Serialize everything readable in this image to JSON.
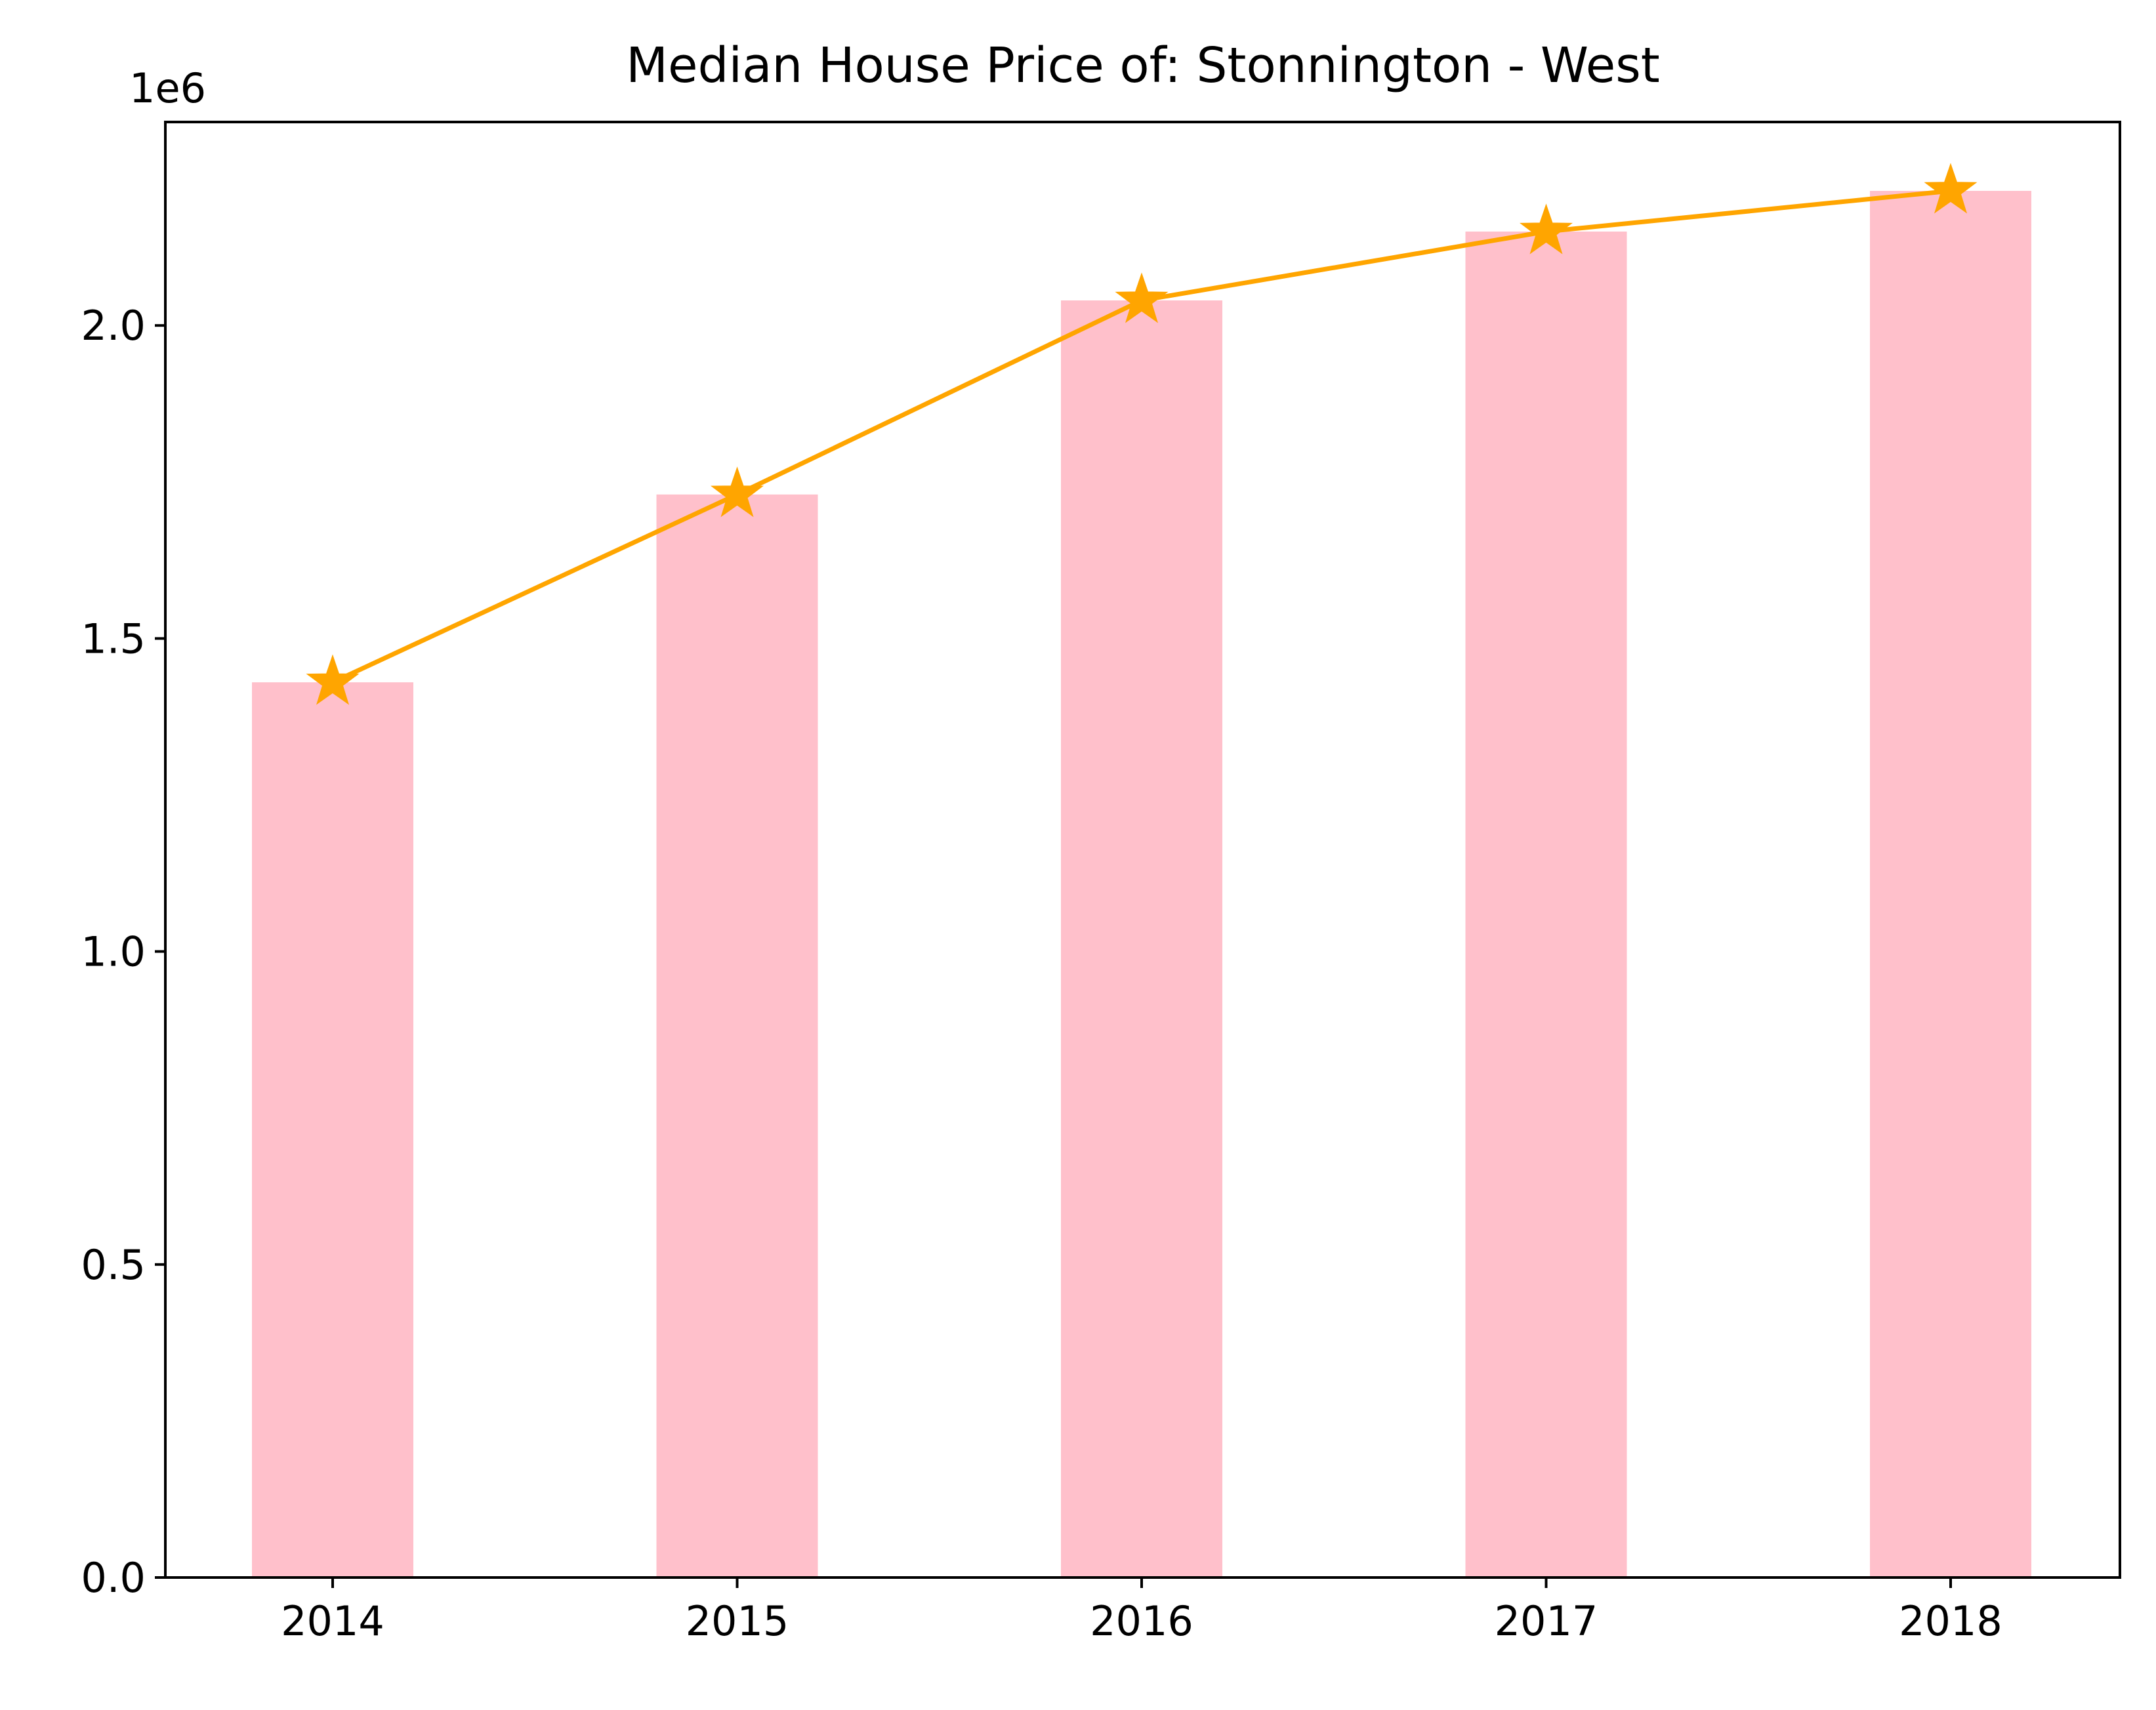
{
  "chart_data": {
    "type": "bar",
    "title": "Median House Price of: Stonnington - West",
    "xlabel": "",
    "ylabel": "",
    "categories": [
      "2014",
      "2015",
      "2016",
      "2017",
      "2018"
    ],
    "values": [
      1430000,
      1730000,
      2040000,
      2150000,
      2215000
    ],
    "line_values": [
      1430000,
      1730000,
      2040000,
      2150000,
      2215000
    ],
    "ylim": [
      0,
      2325000
    ],
    "y_ticks": [
      0,
      500000,
      1000000,
      1500000,
      2000000
    ],
    "y_tick_labels": [
      "0.0",
      "0.5",
      "1.0",
      "1.5",
      "2.0"
    ],
    "y_offset_label": "1e6",
    "grid": false,
    "legend": "none",
    "bar_color": "#ffc0cb",
    "line_color": "#ffa500",
    "marker": "star"
  }
}
